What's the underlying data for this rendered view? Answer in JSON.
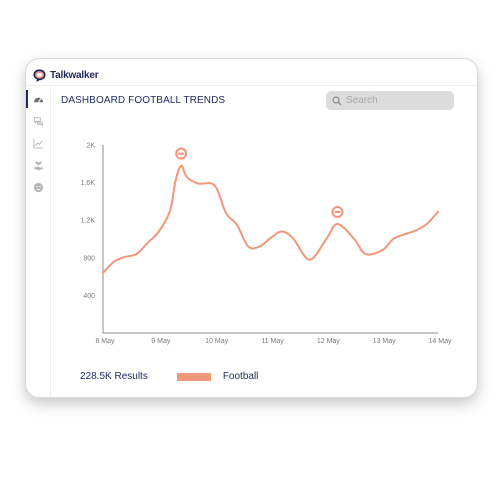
{
  "app": {
    "name": "Talkwalker"
  },
  "header": {
    "title": "DASHBOARD FOOTBALL TRENDS"
  },
  "search": {
    "placeholder": "Search"
  },
  "sidebar": {
    "items": [
      {
        "icon": "dashboard-icon"
      },
      {
        "icon": "chat-icon"
      },
      {
        "icon": "trend-chart-icon"
      },
      {
        "icon": "heart-hand-icon"
      },
      {
        "icon": "face-icon"
      }
    ]
  },
  "footer": {
    "results": "228.5K Results",
    "legend_label": "Football"
  },
  "colors": {
    "accent": "#f0977c",
    "brand": "#1f2a5c"
  },
  "chart_data": {
    "type": "line",
    "title": "",
    "xlabel": "",
    "ylabel": "",
    "x_ticks": [
      "8 May",
      "9 May",
      "10 May",
      "11 May",
      "12 May",
      "13 May",
      "14 May"
    ],
    "y_ticks": [
      "400",
      "800",
      "1.2K",
      "1.6K",
      "2K"
    ],
    "ylim": [
      0,
      2000
    ],
    "xlim": [
      0,
      6
    ],
    "series": [
      {
        "name": "Football",
        "color": "#f0977c",
        "points": [
          [
            0.0,
            640
          ],
          [
            0.2,
            760
          ],
          [
            0.4,
            810
          ],
          [
            0.6,
            840
          ],
          [
            0.8,
            960
          ],
          [
            1.0,
            1080
          ],
          [
            1.2,
            1300
          ],
          [
            1.3,
            1620
          ],
          [
            1.4,
            1780
          ],
          [
            1.5,
            1660
          ],
          [
            1.7,
            1590
          ],
          [
            2.0,
            1570
          ],
          [
            2.2,
            1280
          ],
          [
            2.4,
            1150
          ],
          [
            2.6,
            920
          ],
          [
            2.8,
            920
          ],
          [
            3.0,
            1010
          ],
          [
            3.2,
            1080
          ],
          [
            3.4,
            1010
          ],
          [
            3.7,
            780
          ],
          [
            4.0,
            1000
          ],
          [
            4.2,
            1160
          ],
          [
            4.5,
            1000
          ],
          [
            4.7,
            840
          ],
          [
            5.0,
            880
          ],
          [
            5.2,
            1000
          ],
          [
            5.4,
            1050
          ],
          [
            5.6,
            1090
          ],
          [
            5.8,
            1160
          ],
          [
            6.0,
            1290
          ]
        ]
      }
    ],
    "annotations": [
      {
        "x": 1.4,
        "y": 1780
      },
      {
        "x": 4.2,
        "y": 1160
      }
    ],
    "grid": false,
    "legend": "bottom"
  }
}
